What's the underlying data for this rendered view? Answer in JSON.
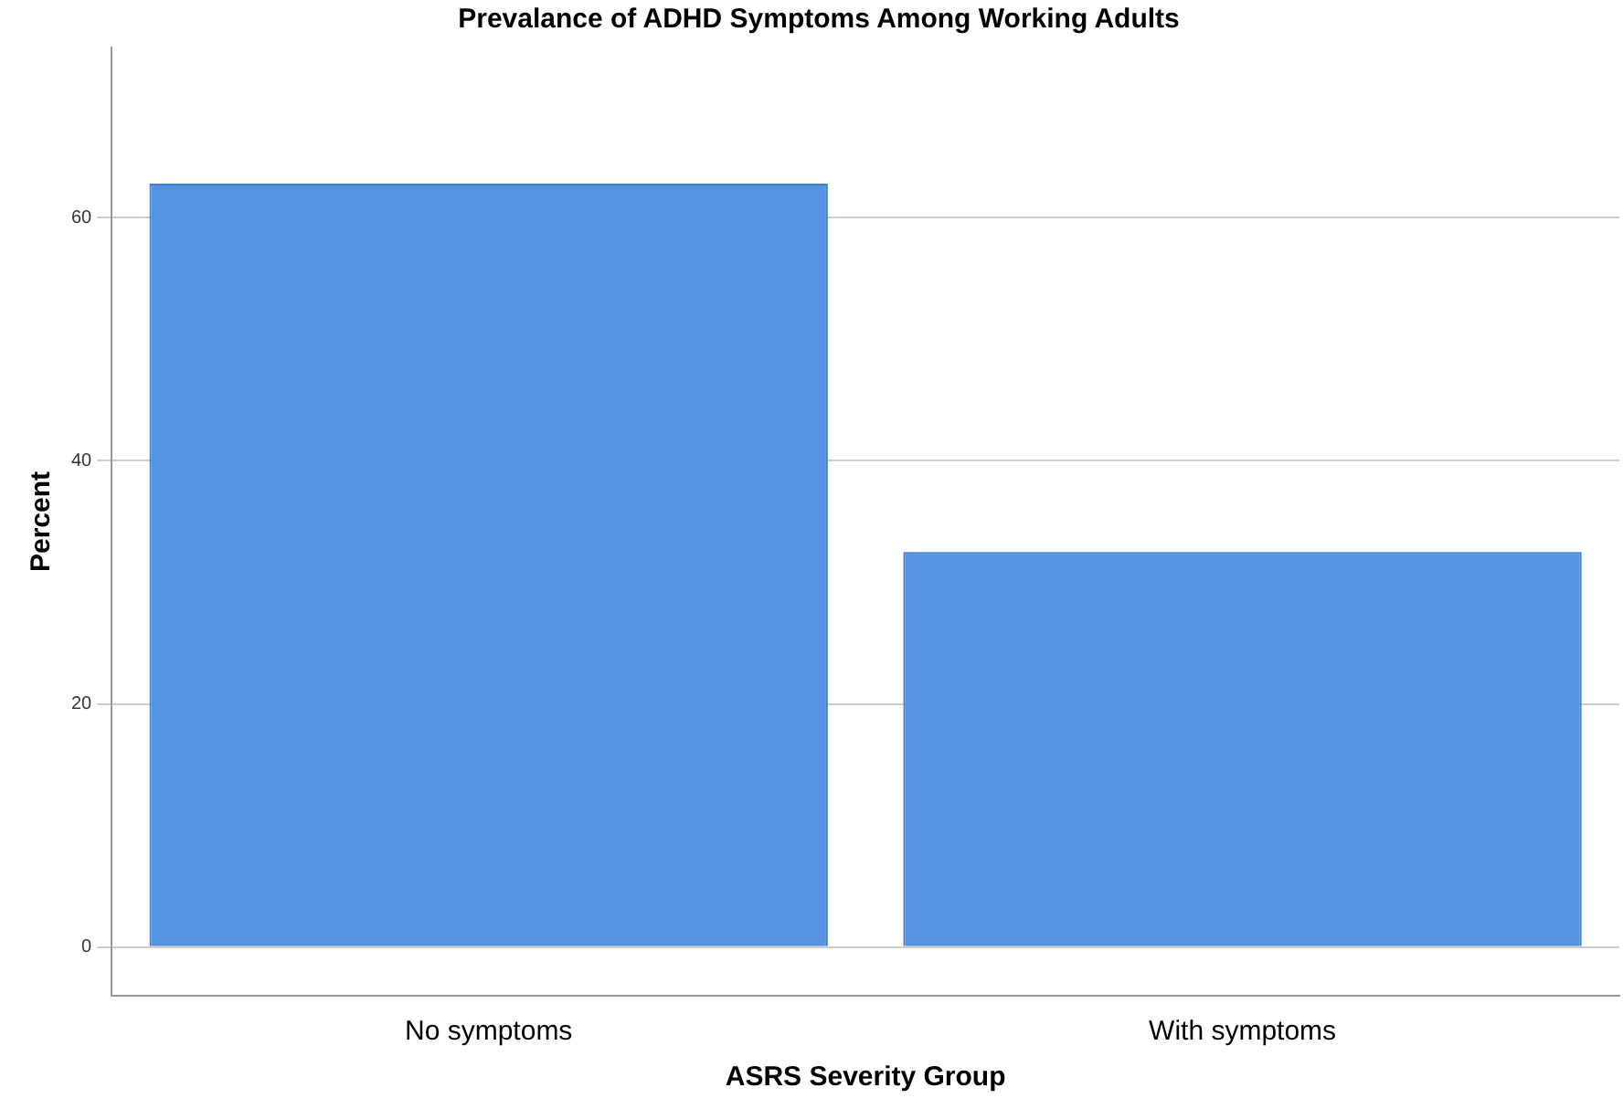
{
  "chart_data": {
    "type": "bar",
    "title": "Prevalance of ADHD Symptoms Among Working Adults",
    "xlabel": "ASRS Severity Group",
    "ylabel": "Percent",
    "categories": [
      "No symptoms",
      "With symptoms"
    ],
    "values": [
      62.8,
      32.5
    ],
    "color": "#5592e0",
    "ylim": [
      -4,
      74
    ],
    "yticks": [
      0,
      20,
      40,
      60
    ],
    "grid": "y"
  }
}
